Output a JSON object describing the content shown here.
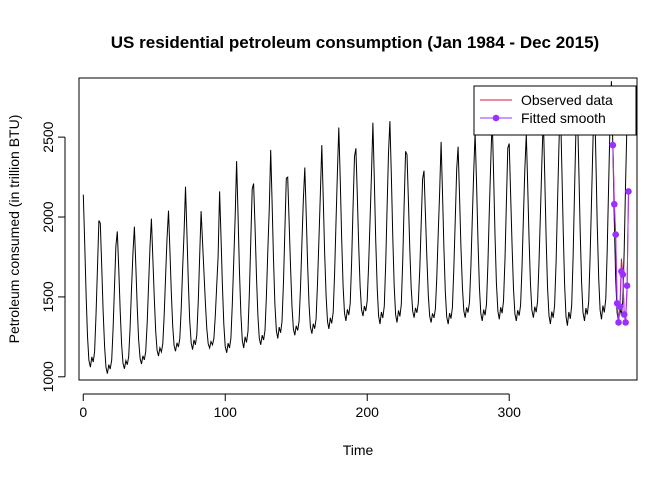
{
  "chart_data": {
    "type": "line",
    "title": "US residential petroleum consumption (Jan 1984 - Dec 2015)",
    "xlabel": "Time",
    "ylabel": "Petroleum consumed (in trillion BTU)",
    "xlim": [
      -3,
      390
    ],
    "ylim": [
      980,
      2870
    ],
    "x_ticks": [
      0,
      100,
      200,
      300
    ],
    "y_ticks": [
      1000,
      1500,
      2000,
      2500
    ],
    "legend_position": "top-right",
    "legend": [
      {
        "label": "Observed data",
        "color": "#dc143c",
        "marker": "line"
      },
      {
        "label": "Fitted smooth",
        "color": "#9b30ff",
        "marker": "line-point"
      }
    ],
    "series": [
      {
        "name": "Observed data",
        "color": "#000000",
        "peaks": [
          2140,
          1960,
          1910,
          1940,
          1990,
          2040,
          2190,
          1850,
          2160,
          2350,
          2210,
          2420,
          2250,
          2310,
          2450,
          2560,
          2430,
          2590,
          2600,
          2390,
          2290,
          2470,
          2440,
          2530,
          2620,
          2460,
          2520,
          2630,
          2750,
          2680,
          2790,
          2850
        ],
        "troughs": [
          1060,
          1020,
          1050,
          1080,
          1130,
          1160,
          1170,
          1180,
          1150,
          1180,
          1200,
          1240,
          1260,
          1270,
          1300,
          1350,
          1380,
          1330,
          1340,
          1370,
          1340,
          1330,
          1370,
          1350,
          1360,
          1350,
          1370,
          1330,
          1320,
          1350,
          1360,
          1340
        ]
      },
      {
        "name": "Observed data (holdout)",
        "color": "#dc143c",
        "x": [
          373,
          374,
          375,
          376,
          377,
          378,
          379,
          380,
          381,
          382,
          383,
          384
        ],
        "y": [
          2460,
          2090,
          1870,
          1470,
          1340,
          1450,
          1740,
          1640,
          1400,
          1350,
          1560,
          2160
        ]
      },
      {
        "name": "Fitted smooth",
        "color": "#9b30ff",
        "x": [
          373,
          374,
          375,
          376,
          377,
          378,
          379,
          380,
          381,
          382,
          383,
          384
        ],
        "y": [
          2450,
          2080,
          1890,
          1460,
          1340,
          1440,
          1660,
          1640,
          1390,
          1340,
          1570,
          2160
        ]
      }
    ]
  }
}
